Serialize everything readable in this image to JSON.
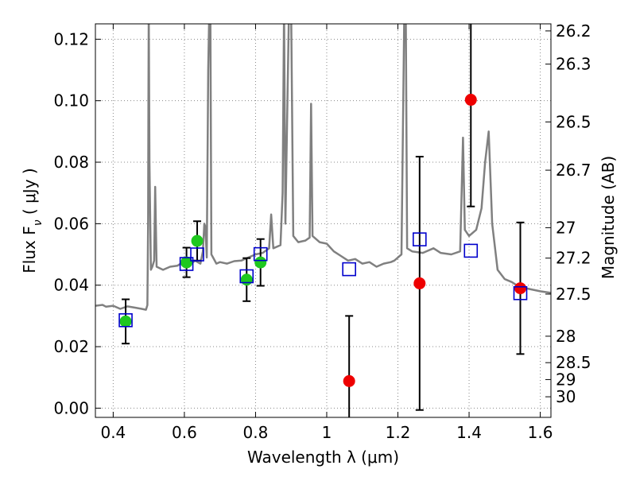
{
  "chart_data": {
    "type": "scatter",
    "xlabel": "Wavelength  λ (μm)",
    "ylabel": "Flux  F",
    "ylabel_sub": "ν",
    "ylabel_unit": "  ( μJy )",
    "y2label": "Magnitude (AB)",
    "xlim": [
      0.35,
      1.63
    ],
    "ylim": [
      -0.003,
      0.125
    ],
    "grid": true,
    "x_ticks": [
      0.4,
      0.6,
      0.8,
      1.0,
      1.2,
      1.4,
      1.6
    ],
    "x_tick_labels": [
      "0.4",
      "0.6",
      "0.8",
      "1",
      "1.2",
      "1.4",
      "1.6"
    ],
    "y_ticks": [
      0.0,
      0.02,
      0.04,
      0.06,
      0.08,
      0.1,
      0.12
    ],
    "y_tick_labels": [
      "0.00",
      "0.02",
      "0.04",
      "0.06",
      "0.08",
      "0.10",
      "0.12"
    ],
    "right_ticks": [
      {
        "label": "26.2",
        "flux": 0.1227
      },
      {
        "label": "26.3",
        "flux": 0.1119
      },
      {
        "label": "26.5",
        "flux": 0.0931
      },
      {
        "label": "26.7",
        "flux": 0.0774
      },
      {
        "label": "27",
        "flux": 0.0587
      },
      {
        "label": "27.2",
        "flux": 0.0488
      },
      {
        "label": "27.5",
        "flux": 0.0371
      },
      {
        "label": "28",
        "flux": 0.0234
      },
      {
        "label": "28.5",
        "flux": 0.0148
      },
      {
        "label": "29",
        "flux": 0.0093
      },
      {
        "label": "30",
        "flux": 0.0037
      }
    ],
    "colors": {
      "spectrum": "#808080",
      "model": "#0000cc",
      "green": "#1ec81e",
      "red": "#ee0000",
      "error": "#000000",
      "grid": "#888888"
    },
    "series": [
      {
        "marker": "circle-green",
        "points": [
          {
            "x": 0.435,
            "y": 0.0282,
            "err": 0.0072
          },
          {
            "x": 0.606,
            "y": 0.0474,
            "err": 0.0048
          },
          {
            "x": 0.636,
            "y": 0.0544,
            "err": 0.0064
          },
          {
            "x": 0.775,
            "y": 0.0418,
            "err": 0.007
          },
          {
            "x": 0.814,
            "y": 0.0474,
            "err": 0.0076
          }
        ]
      },
      {
        "marker": "circle-red",
        "points": [
          {
            "x": 1.063,
            "y": 0.0088,
            "err": 0.0212
          },
          {
            "x": 1.261,
            "y": 0.0406,
            "err": 0.0412
          },
          {
            "x": 1.405,
            "y": 0.1003,
            "err": 0.0347
          },
          {
            "x": 1.544,
            "y": 0.039,
            "err": 0.0214
          }
        ]
      },
      {
        "marker": "square-open-blue",
        "points": [
          {
            "x": 0.435,
            "y": 0.0286
          },
          {
            "x": 0.606,
            "y": 0.0469
          },
          {
            "x": 0.636,
            "y": 0.05
          },
          {
            "x": 0.775,
            "y": 0.0429
          },
          {
            "x": 0.814,
            "y": 0.0501
          },
          {
            "x": 1.063,
            "y": 0.0452
          },
          {
            "x": 1.261,
            "y": 0.0549
          },
          {
            "x": 1.405,
            "y": 0.0512
          },
          {
            "x": 1.544,
            "y": 0.0374
          }
        ]
      },
      {
        "marker": "line-gray",
        "points": [
          [
            0.35,
            0.0333
          ],
          [
            0.37,
            0.0336
          ],
          [
            0.38,
            0.033
          ],
          [
            0.4,
            0.0333
          ],
          [
            0.42,
            0.0323
          ],
          [
            0.44,
            0.0331
          ],
          [
            0.46,
            0.0327
          ],
          [
            0.48,
            0.0323
          ],
          [
            0.492,
            0.032
          ],
          [
            0.496,
            0.0335
          ],
          [
            0.498,
            0.06
          ],
          [
            0.499,
            0.1
          ],
          [
            0.5,
            0.13
          ],
          [
            0.502,
            0.08
          ],
          [
            0.506,
            0.045
          ],
          [
            0.51,
            0.046
          ],
          [
            0.515,
            0.048
          ],
          [
            0.518,
            0.072
          ],
          [
            0.522,
            0.046
          ],
          [
            0.54,
            0.045
          ],
          [
            0.56,
            0.046
          ],
          [
            0.58,
            0.0463
          ],
          [
            0.59,
            0.047
          ],
          [
            0.6,
            0.046
          ],
          [
            0.62,
            0.047
          ],
          [
            0.63,
            0.048
          ],
          [
            0.645,
            0.047
          ],
          [
            0.652,
            0.051
          ],
          [
            0.656,
            0.06
          ],
          [
            0.659,
            0.059
          ],
          [
            0.663,
            0.049
          ],
          [
            0.667,
            0.11
          ],
          [
            0.67,
            0.13
          ],
          [
            0.673,
            0.13
          ],
          [
            0.676,
            0.05
          ],
          [
            0.69,
            0.047
          ],
          [
            0.7,
            0.0475
          ],
          [
            0.72,
            0.047
          ],
          [
            0.74,
            0.0478
          ],
          [
            0.76,
            0.048
          ],
          [
            0.78,
            0.049
          ],
          [
            0.8,
            0.05
          ],
          [
            0.82,
            0.0505
          ],
          [
            0.838,
            0.052
          ],
          [
            0.844,
            0.063
          ],
          [
            0.85,
            0.052
          ],
          [
            0.87,
            0.053
          ],
          [
            0.876,
            0.07
          ],
          [
            0.88,
            0.13
          ],
          [
            0.884,
            0.06
          ],
          [
            0.894,
            0.13
          ],
          [
            0.9,
            0.13
          ],
          [
            0.906,
            0.056
          ],
          [
            0.92,
            0.054
          ],
          [
            0.94,
            0.0545
          ],
          [
            0.952,
            0.0555
          ],
          [
            0.956,
            0.099
          ],
          [
            0.96,
            0.056
          ],
          [
            0.98,
            0.054
          ],
          [
            1.0,
            0.0535
          ],
          [
            1.02,
            0.051
          ],
          [
            1.04,
            0.0495
          ],
          [
            1.06,
            0.048
          ],
          [
            1.08,
            0.0485
          ],
          [
            1.1,
            0.047
          ],
          [
            1.12,
            0.0475
          ],
          [
            1.14,
            0.046
          ],
          [
            1.16,
            0.047
          ],
          [
            1.18,
            0.0475
          ],
          [
            1.19,
            0.048
          ],
          [
            1.2,
            0.049
          ],
          [
            1.21,
            0.05
          ],
          [
            1.218,
            0.13
          ],
          [
            1.222,
            0.13
          ],
          [
            1.226,
            0.052
          ],
          [
            1.24,
            0.051
          ],
          [
            1.27,
            0.0505
          ],
          [
            1.3,
            0.052
          ],
          [
            1.32,
            0.0505
          ],
          [
            1.35,
            0.05
          ],
          [
            1.375,
            0.051
          ],
          [
            1.383,
            0.088
          ],
          [
            1.388,
            0.058
          ],
          [
            1.4,
            0.056
          ],
          [
            1.42,
            0.058
          ],
          [
            1.435,
            0.065
          ],
          [
            1.445,
            0.08
          ],
          [
            1.455,
            0.09
          ],
          [
            1.465,
            0.06
          ],
          [
            1.48,
            0.045
          ],
          [
            1.5,
            0.042
          ],
          [
            1.52,
            0.041
          ],
          [
            1.54,
            0.0395
          ],
          [
            1.56,
            0.039
          ],
          [
            1.58,
            0.0385
          ],
          [
            1.6,
            0.038
          ],
          [
            1.63,
            0.0375
          ]
        ]
      }
    ]
  }
}
